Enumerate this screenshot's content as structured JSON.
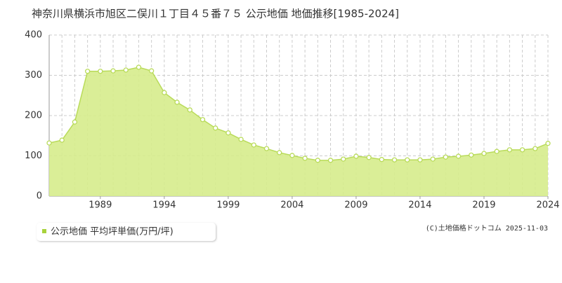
{
  "chart_data": {
    "type": "area",
    "title": "神奈川県横浜市旭区二俣川１丁目４５番７５ 公示地価 地価推移[1985-2024]",
    "source": "(C)土地価格ドットコム 2025-11-03",
    "x": [
      1985,
      1986,
      1987,
      1988,
      1989,
      1990,
      1991,
      1992,
      1993,
      1994,
      1995,
      1996,
      1997,
      1998,
      1999,
      2000,
      2001,
      2002,
      2003,
      2004,
      2005,
      2006,
      2007,
      2008,
      2009,
      2010,
      2011,
      2012,
      2013,
      2014,
      2015,
      2016,
      2017,
      2018,
      2019,
      2020,
      2021,
      2022,
      2023,
      2024
    ],
    "series": [
      {
        "name": "公示地価 平均坪単価(万円/坪)",
        "color": "#a8d23c",
        "values": [
          132,
          139,
          184,
          310,
          310,
          311,
          313,
          320,
          311,
          257,
          233,
          214,
          190,
          169,
          157,
          141,
          127,
          118,
          108,
          101,
          94,
          89,
          89,
          92,
          99,
          96,
          91,
          90,
          90,
          90,
          92,
          97,
          99,
          102,
          106,
          111,
          115,
          115,
          118,
          131
        ]
      }
    ],
    "xlim": [
      1985,
      2024
    ],
    "xticks": [
      1989,
      1994,
      1999,
      2004,
      2009,
      2014,
      2019,
      2024
    ],
    "ylim": [
      0,
      400
    ],
    "yticks": [
      0,
      100,
      200,
      300,
      400
    ],
    "grid": true
  }
}
